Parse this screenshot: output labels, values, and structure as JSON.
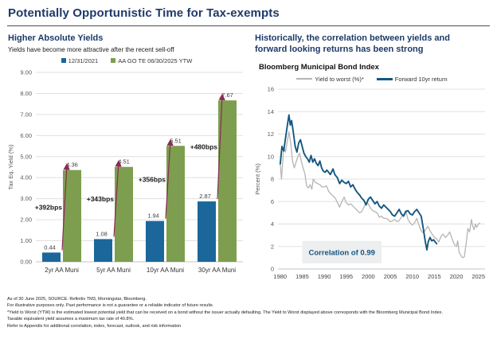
{
  "page": {
    "title": "Potentially Opportunistic Time for Tax-exempts"
  },
  "left_panel": {
    "heading": "Higher Absolute Yields",
    "subheading": "Yields have become more attractive after the recent sell-off"
  },
  "right_panel": {
    "heading": "Historically, the correlation between yields and\nforward looking returns has been strong",
    "chart_title": "Bloomberg Municipal Bond Index"
  },
  "colors": {
    "heading_navy": "#1e3a68",
    "bar_blue": "#1b679c",
    "bar_green": "#7d9e4e",
    "arrow_maroon": "#8c2a56",
    "line_gray": "#b5b5b5",
    "line_blue": "#15577f",
    "annotation_bg": "#eceef0",
    "annotation_text": "#14547e",
    "gridline": "#e0e0e0"
  },
  "footer": {
    "lines": [
      "As of 30 June 2025, SOURCE: Refinitiv TM3, Morningstar, Bloomberg.",
      "For illustrative purposes only. Past performance is not a guarantee or a reliable indicator of future results",
      "*Yield to Worst (YTW) is the estimated lowest potential yield that can be received on a bond without the issuer actually defaulting. The Yield to Worst displayed above corresponds with the Bloomberg Municipal Bond Index.",
      "Taxable equivalent yield assumes a maximum tax rate of 40.8%.",
      "Refer to Appendix for additional correlation, index, forecast, outlook, and risk information"
    ]
  },
  "chart_data": [
    {
      "id": "tax-eq-yield-bars",
      "type": "bar",
      "categories": [
        "2yr AA Muni",
        "5yr AA Muni",
        "10yr AA Muni",
        "30yr AA Muni"
      ],
      "series": [
        {
          "name": "12/31/2021",
          "color": "#1b679c",
          "values": [
            0.44,
            1.08,
            1.94,
            2.87
          ]
        },
        {
          "name": "AA GO TE 06/30/2025 YTW",
          "color": "#7d9e4e",
          "values": [
            4.36,
            4.51,
            5.51,
            7.67
          ]
        }
      ],
      "deltas": [
        "+392bps",
        "+343bps",
        "+356bps",
        "+480bps"
      ],
      "arrow_color": "#8c2a56",
      "ylabel": "Tax Eq. Yield (%)",
      "ylim": [
        0,
        9
      ],
      "ytick_step": 1,
      "grid": true,
      "legend_position": "top"
    },
    {
      "id": "muni-yield-vs-forward-return",
      "type": "line",
      "title": "Bloomberg Municipal Bond Index",
      "ylabel": "Percent (%)",
      "ylim": [
        0,
        16
      ],
      "ytick_step": 2,
      "xlim": [
        1979.5,
        2026.5
      ],
      "xticks": [
        1980,
        1985,
        1990,
        1995,
        2000,
        2005,
        2010,
        2015,
        2020,
        2025
      ],
      "grid": true,
      "legend_position": "top",
      "annotation": {
        "text": "Correlation of 0.99",
        "x0": 1985,
        "x1": 2003,
        "y0": 0.5,
        "y1": 2.5
      },
      "series": [
        {
          "name": "Yield to worst (%)*",
          "color": "#b5b5b5",
          "width": 1.3,
          "points": [
            [
              1980.0,
              9.4
            ],
            [
              1980.3,
              8.0
            ],
            [
              1980.8,
              10.8
            ],
            [
              1981.2,
              10.4
            ],
            [
              1981.6,
              11.3
            ],
            [
              1982.0,
              12.2
            ],
            [
              1982.4,
              11.2
            ],
            [
              1982.8,
              9.6
            ],
            [
              1983.2,
              9.0
            ],
            [
              1983.6,
              9.5
            ],
            [
              1984.0,
              10.0
            ],
            [
              1984.4,
              10.3
            ],
            [
              1984.8,
              9.6
            ],
            [
              1985.2,
              9.0
            ],
            [
              1985.6,
              8.5
            ],
            [
              1986.0,
              7.4
            ],
            [
              1986.4,
              7.2
            ],
            [
              1986.8,
              7.5
            ],
            [
              1987.2,
              7.1
            ],
            [
              1987.5,
              8.0
            ],
            [
              1988.0,
              7.7
            ],
            [
              1988.5,
              7.6
            ],
            [
              1989.0,
              7.5
            ],
            [
              1989.5,
              7.3
            ],
            [
              1990.0,
              7.3
            ],
            [
              1990.5,
              7.4
            ],
            [
              1991.0,
              6.9
            ],
            [
              1991.5,
              6.7
            ],
            [
              1992.0,
              6.5
            ],
            [
              1992.5,
              6.3
            ],
            [
              1993.0,
              5.9
            ],
            [
              1993.5,
              5.5
            ],
            [
              1994.0,
              6.0
            ],
            [
              1994.5,
              6.4
            ],
            [
              1995.0,
              5.9
            ],
            [
              1995.5,
              5.7
            ],
            [
              1996.0,
              5.8
            ],
            [
              1996.5,
              5.6
            ],
            [
              1997.0,
              5.4
            ],
            [
              1997.5,
              5.2
            ],
            [
              1998.0,
              5.0
            ],
            [
              1998.5,
              5.1
            ],
            [
              1999.0,
              5.5
            ],
            [
              1999.5,
              5.9
            ],
            [
              2000.0,
              5.8
            ],
            [
              2000.5,
              5.4
            ],
            [
              2001.0,
              5.2
            ],
            [
              2001.5,
              5.1
            ],
            [
              2002.0,
              5.0
            ],
            [
              2002.5,
              4.6
            ],
            [
              2003.0,
              4.7
            ],
            [
              2003.5,
              4.5
            ],
            [
              2004.0,
              4.5
            ],
            [
              2004.5,
              4.4
            ],
            [
              2005.0,
              4.2
            ],
            [
              2005.5,
              4.3
            ],
            [
              2006.0,
              4.4
            ],
            [
              2006.5,
              4.2
            ],
            [
              2007.0,
              4.3
            ],
            [
              2007.5,
              4.6
            ],
            [
              2008.0,
              4.8
            ],
            [
              2008.5,
              5.2
            ],
            [
              2009.0,
              4.4
            ],
            [
              2009.5,
              4.1
            ],
            [
              2010.0,
              3.9
            ],
            [
              2010.5,
              4.1
            ],
            [
              2011.0,
              4.5
            ],
            [
              2011.5,
              3.9
            ],
            [
              2012.0,
              3.4
            ],
            [
              2012.5,
              3.2
            ],
            [
              2013.0,
              3.5
            ],
            [
              2013.5,
              3.8
            ],
            [
              2014.0,
              3.4
            ],
            [
              2014.5,
              3.1
            ],
            [
              2015.0,
              2.8
            ],
            [
              2015.5,
              2.7
            ],
            [
              2016.0,
              2.4
            ],
            [
              2016.5,
              2.9
            ],
            [
              2017.0,
              3.1
            ],
            [
              2017.5,
              2.8
            ],
            [
              2018.0,
              3.0
            ],
            [
              2018.5,
              3.3
            ],
            [
              2019.0,
              2.7
            ],
            [
              2019.5,
              2.2
            ],
            [
              2020.0,
              2.0
            ],
            [
              2020.3,
              2.5
            ],
            [
              2020.6,
              1.5
            ],
            [
              2021.0,
              1.2
            ],
            [
              2021.4,
              1.0
            ],
            [
              2021.8,
              1.1
            ],
            [
              2022.2,
              2.2
            ],
            [
              2022.6,
              3.6
            ],
            [
              2023.0,
              3.3
            ],
            [
              2023.4,
              4.4
            ],
            [
              2023.7,
              3.8
            ],
            [
              2024.0,
              3.5
            ],
            [
              2024.3,
              4.0
            ],
            [
              2024.6,
              3.7
            ],
            [
              2025.0,
              4.0
            ],
            [
              2025.4,
              4.1
            ]
          ]
        },
        {
          "name": "Forward 10yr return",
          "color": "#15577f",
          "width": 1.9,
          "points": [
            [
              1980.0,
              9.3
            ],
            [
              1980.4,
              10.9
            ],
            [
              1980.8,
              10.5
            ],
            [
              1981.2,
              11.6
            ],
            [
              1981.6,
              12.7
            ],
            [
              1982.0,
              13.7
            ],
            [
              1982.3,
              12.8
            ],
            [
              1982.6,
              13.2
            ],
            [
              1983.0,
              12.1
            ],
            [
              1983.4,
              10.9
            ],
            [
              1983.8,
              10.4
            ],
            [
              1984.2,
              11.2
            ],
            [
              1984.6,
              11.5
            ],
            [
              1985.0,
              10.9
            ],
            [
              1985.4,
              10.3
            ],
            [
              1985.8,
              10.0
            ],
            [
              1986.2,
              9.8
            ],
            [
              1986.6,
              9.5
            ],
            [
              1987.0,
              10.1
            ],
            [
              1987.4,
              9.5
            ],
            [
              1987.8,
              9.8
            ],
            [
              1988.2,
              9.4
            ],
            [
              1988.6,
              9.2
            ],
            [
              1989.0,
              9.6
            ],
            [
              1989.4,
              9.0
            ],
            [
              1989.8,
              8.7
            ],
            [
              1990.2,
              8.6
            ],
            [
              1990.6,
              8.8
            ],
            [
              1991.0,
              8.6
            ],
            [
              1991.4,
              8.4
            ],
            [
              1992.0,
              8.9
            ],
            [
              1992.4,
              8.4
            ],
            [
              1993.0,
              8.1
            ],
            [
              1993.5,
              7.6
            ],
            [
              1994.0,
              7.9
            ],
            [
              1994.5,
              7.7
            ],
            [
              1995.0,
              7.6
            ],
            [
              1995.5,
              7.8
            ],
            [
              1996.0,
              7.3
            ],
            [
              1996.5,
              7.5
            ],
            [
              1997.0,
              7.1
            ],
            [
              1997.5,
              6.8
            ],
            [
              1998.0,
              6.6
            ],
            [
              1998.5,
              6.3
            ],
            [
              1999.0,
              6.1
            ],
            [
              1999.5,
              5.7
            ],
            [
              2000.0,
              6.2
            ],
            [
              2000.5,
              6.4
            ],
            [
              2001.0,
              6.1
            ],
            [
              2001.5,
              5.8
            ],
            [
              2002.0,
              6.0
            ],
            [
              2002.5,
              5.6
            ],
            [
              2003.0,
              5.4
            ],
            [
              2003.5,
              5.7
            ],
            [
              2004.0,
              5.5
            ],
            [
              2004.5,
              5.3
            ],
            [
              2005.0,
              5.1
            ],
            [
              2005.5,
              4.8
            ],
            [
              2006.0,
              4.7
            ],
            [
              2006.5,
              5.0
            ],
            [
              2007.0,
              5.3
            ],
            [
              2007.5,
              4.9
            ],
            [
              2008.0,
              4.7
            ],
            [
              2008.5,
              5.1
            ],
            [
              2009.0,
              5.2
            ],
            [
              2009.5,
              4.9
            ],
            [
              2010.0,
              4.8
            ],
            [
              2010.5,
              5.1
            ],
            [
              2011.0,
              5.3
            ],
            [
              2011.5,
              5.0
            ],
            [
              2012.0,
              4.7
            ],
            [
              2012.4,
              3.8
            ],
            [
              2012.8,
              2.8
            ],
            [
              2013.0,
              2.3
            ],
            [
              2013.3,
              1.7
            ],
            [
              2013.6,
              2.4
            ],
            [
              2014.0,
              2.8
            ],
            [
              2014.4,
              2.5
            ],
            [
              2014.8,
              2.6
            ],
            [
              2015.2,
              2.4
            ],
            [
              2015.6,
              2.2
            ]
          ]
        }
      ]
    }
  ]
}
